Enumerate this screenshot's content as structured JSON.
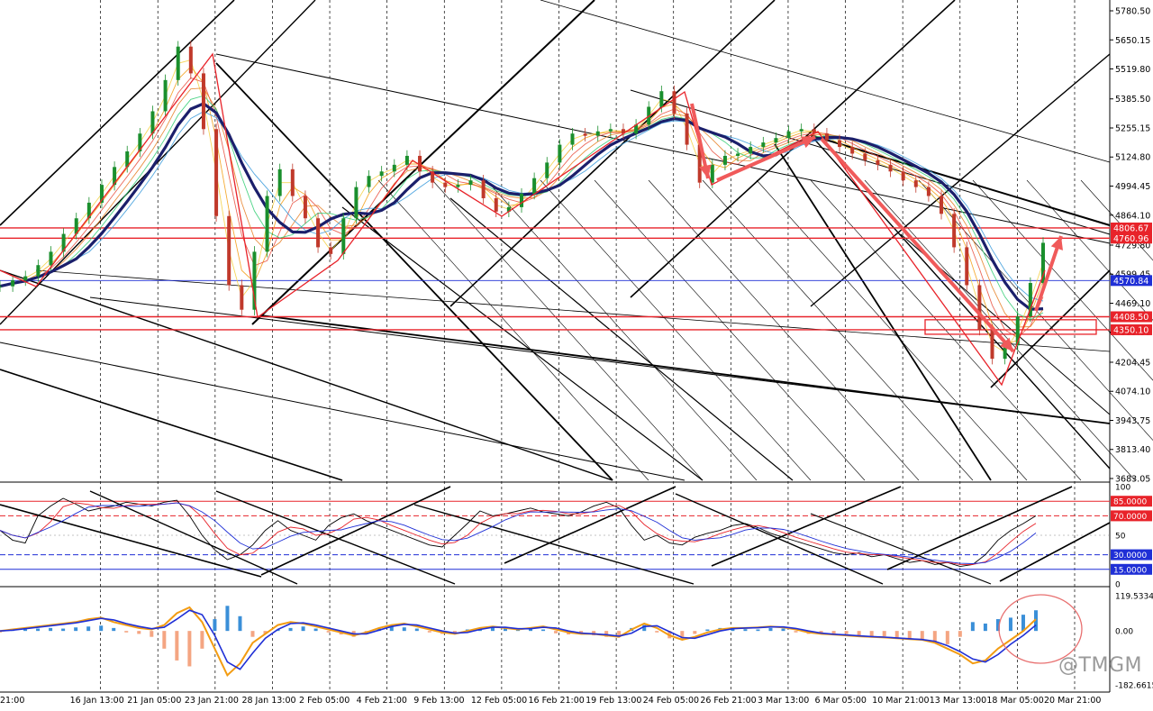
{
  "watermark": "@TMGM",
  "chart_data": {
    "type": "line",
    "price_axis_labels": [
      "5780.50",
      "5650.15",
      "5519.80",
      "5385.50",
      "5255.15",
      "5124.80",
      "4994.45",
      "4864.10",
      "4729.80",
      "4599.45",
      "4469.10",
      "4339.80",
      "4204.45",
      "4074.10",
      "3943.75",
      "3813.40",
      "3683.05"
    ],
    "ylim": [
      3683.05,
      5780.5
    ],
    "highlighted_levels": [
      {
        "label": "4806.67",
        "value": 4806.67,
        "color": "#e8232a"
      },
      {
        "label": "4760.96",
        "value": 4760.96,
        "color": "#e8232a"
      },
      {
        "label": "4570.84",
        "value": 4570.84,
        "color": "#1f2fd6"
      },
      {
        "label": "4408.50",
        "value": 4408.5,
        "color": "#e8232a"
      },
      {
        "label": "4350.10",
        "value": 4350.1,
        "color": "#e8232a"
      }
    ],
    "time_labels": [
      "21:00",
      "16 Jan 13:00",
      "21 Jan 05:00",
      "23 Jan 21:00",
      "28 Jan 13:00",
      "2 Feb 05:00",
      "4 Feb 21:00",
      "9 Feb 13:00",
      "12 Feb 05:00",
      "16 Feb 21:00",
      "19 Feb 13:00",
      "24 Feb 05:00",
      "26 Feb 21:00",
      "3 Mar 13:00",
      "6 Mar 05:00",
      "10 Mar 21:00",
      "13 Mar 13:00",
      "18 Mar 05:00",
      "20 Mar 21:00"
    ],
    "price_series": {
      "name": "",
      "values": [
        4545,
        4572,
        4590,
        4640,
        4700,
        4780,
        4850,
        4920,
        5000,
        5080,
        5150,
        5230,
        5330,
        5470,
        5620,
        5500,
        5250,
        4860,
        4550,
        4440,
        4700,
        4950,
        5070,
        4950,
        4850,
        4720,
        4690,
        4850,
        4990,
        5040,
        5060,
        5090,
        5130,
        5060,
        5010,
        4990,
        5000,
        5020,
        4940,
        4880,
        4900,
        4960,
        5030,
        5100,
        5180,
        5230,
        5220,
        5240,
        5250,
        5230,
        5270,
        5350,
        5420,
        5320,
        5180,
        5010,
        5090,
        5130,
        5140,
        5170,
        5190,
        5210,
        5240,
        5250,
        5230,
        5200,
        5170,
        5140,
        5110,
        5090,
        5060,
        5020,
        4990,
        4950,
        4870,
        4720,
        4550,
        4350,
        4220,
        4280,
        4410,
        4560,
        4740
      ]
    },
    "oscillator": {
      "axis_labels": [
        "100",
        "50",
        "0"
      ],
      "ylim": [
        0,
        100
      ],
      "levels": [
        {
          "label": "85.0000",
          "value": 85,
          "color": "#e8232a"
        },
        {
          "label": "70.0000",
          "value": 70,
          "color": "#e8232a"
        },
        {
          "label": "30.0000",
          "value": 30,
          "color": "#1f2fd6"
        },
        {
          "label": "15.0000",
          "value": 15,
          "color": "#1f2fd6"
        }
      ],
      "values": [
        55,
        45,
        42,
        70,
        80,
        88,
        82,
        75,
        78,
        80,
        84,
        82,
        80,
        84,
        86,
        70,
        50,
        35,
        25,
        30,
        40,
        55,
        65,
        55,
        50,
        45,
        60,
        68,
        72,
        65,
        60,
        55,
        50,
        45,
        40,
        38,
        50,
        62,
        75,
        70,
        72,
        75,
        78,
        74,
        72,
        70,
        74,
        80,
        84,
        78,
        60,
        45,
        50,
        42,
        40,
        48,
        52,
        55,
        60,
        62,
        58,
        52,
        48,
        44,
        40,
        36,
        32,
        30,
        32,
        28,
        30,
        26,
        22,
        24,
        20,
        22,
        18,
        20,
        30,
        45,
        55,
        62,
        70
      ]
    },
    "macd": {
      "axis_labels": [
        "119.5334",
        "0.00",
        "-182.6615"
      ],
      "ylim": [
        -182.6615,
        119.5334
      ],
      "histogram": [
        -5,
        3,
        6,
        8,
        10,
        8,
        12,
        15,
        18,
        10,
        -5,
        -10,
        -20,
        -60,
        -100,
        -120,
        -60,
        40,
        85,
        50,
        -20,
        -10,
        5,
        10,
        15,
        8,
        -5,
        -12,
        -20,
        -10,
        10,
        15,
        12,
        8,
        -5,
        -10,
        -8,
        5,
        10,
        12,
        8,
        6,
        10,
        5,
        -8,
        -12,
        -10,
        -15,
        -20,
        -18,
        10,
        20,
        -5,
        -25,
        -30,
        -10,
        5,
        10,
        8,
        6,
        5,
        10,
        8,
        -5,
        -10,
        -8,
        -12,
        -10,
        -15,
        -20,
        -18,
        -22,
        -25,
        -30,
        -40,
        -45,
        -20,
        30,
        25,
        40,
        45,
        55,
        70
      ],
      "line": [
        0,
        5,
        10,
        15,
        20,
        25,
        30,
        40,
        45,
        30,
        20,
        10,
        5,
        20,
        60,
        80,
        30,
        -60,
        -150,
        -110,
        -40,
        -10,
        20,
        30,
        25,
        15,
        5,
        -5,
        -15,
        -5,
        10,
        20,
        25,
        15,
        5,
        -5,
        -10,
        0,
        10,
        15,
        10,
        5,
        10,
        15,
        5,
        -5,
        -10,
        -10,
        -15,
        -20,
        5,
        25,
        10,
        -15,
        -30,
        -20,
        -5,
        5,
        10,
        10,
        12,
        15,
        12,
        5,
        -5,
        -10,
        -12,
        -15,
        -18,
        -20,
        -22,
        -25,
        -28,
        -30,
        -40,
        -60,
        -80,
        -110,
        -100,
        -60,
        -30,
        0,
        40
      ]
    }
  }
}
